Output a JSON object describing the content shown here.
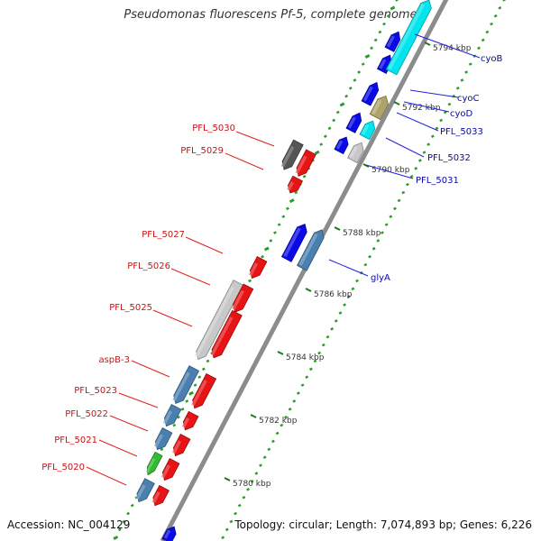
{
  "title": "Pseudomonas fluorescens Pf-5, complete genome",
  "footer": {
    "accession": "Accession: NC_004129",
    "summary": "Topology: circular; Length: 7,074,893 bp; Genes: 6,226"
  },
  "colors": {
    "backbone": "#8c8c8c",
    "gc_marks": "#2a9d2a",
    "forward_strand": "#0a0ae6",
    "reverse_strand": "#e61414",
    "tick": "#1a7a1a",
    "label_forward": "#0a0aa0",
    "label_reverse": "#c81414",
    "leader_forward": "#2020e0",
    "leader_reverse": "#e02020"
  },
  "scale_labels": [
    "5794 kbp",
    "5792 kbp",
    "5790 kbp",
    "5788 kbp",
    "5786 kbp",
    "5784 kbp",
    "5782 kbp",
    "5780 kbp"
  ],
  "features_right": [
    {
      "label": "cyoB",
      "color": "#0a0ae6",
      "icon": "forward-gene-arrow"
    },
    {
      "label": "cyoC",
      "color": "#0a0ae6",
      "icon": "forward-gene-arrow"
    },
    {
      "label": "cyoD",
      "color": "#0a0ae6",
      "icon": "forward-gene-arrow"
    },
    {
      "label": "PFL_5033",
      "color": "#0a0ae6",
      "icon": "forward-gene-arrow"
    },
    {
      "label": "PFL_5032",
      "color": "#0a0ae6",
      "icon": "forward-gene-arrow"
    },
    {
      "label": "PFL_5031",
      "color": "#0a0ae6",
      "icon": "forward-gene-arrow"
    },
    {
      "label": "glyA",
      "color": "#4a7fb0",
      "icon": "forward-gene-arrow"
    }
  ],
  "features_left": [
    {
      "label": "PFL_5030",
      "color": "#555555",
      "icon": "reverse-gene-arrow"
    },
    {
      "label": "PFL_5029",
      "color": "#e61414",
      "icon": "reverse-gene-arrow"
    },
    {
      "label": "PFL_5027",
      "color": "#e61414",
      "icon": "reverse-gene-arrow"
    },
    {
      "label": "PFL_5026",
      "color": "#c8c8c8",
      "icon": "reverse-gene-arrow"
    },
    {
      "label": "PFL_5025",
      "color": "#c8c8c8",
      "icon": "reverse-gene-arrow"
    },
    {
      "label": "aspB-3",
      "color": "#4a7fb0",
      "icon": "reverse-gene-arrow"
    },
    {
      "label": "PFL_5023",
      "color": "#4a7fb0",
      "icon": "reverse-gene-arrow"
    },
    {
      "label": "PFL_5022",
      "color": "#4a7fb0",
      "icon": "reverse-gene-arrow"
    },
    {
      "label": "PFL_5021",
      "color": "#33bb33",
      "icon": "reverse-gene-arrow"
    },
    {
      "label": "PFL_5020",
      "color": "#4a7fb0",
      "icon": "reverse-gene-arrow"
    }
  ]
}
